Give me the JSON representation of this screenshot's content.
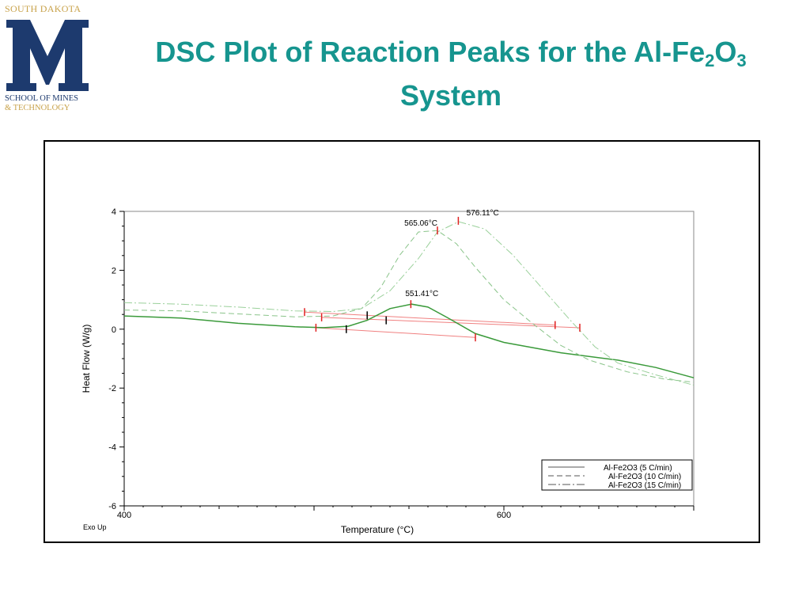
{
  "logo": {
    "top_text": "SOUTH DAKOTA",
    "letter": "M",
    "line1": "SCHOOL OF MINES",
    "line2": "& TECHNOLOGY",
    "colors": {
      "navy": "#1d3a6e",
      "gold": "#c8a24a"
    }
  },
  "title": {
    "part1": "DSC Plot of Reaction Peaks for the Al-Fe",
    "sub1": "2",
    "part2": "O",
    "sub2": "3",
    "line2": "System",
    "color": "#16958f"
  },
  "chart_data": {
    "type": "line",
    "xlabel": "Temperature (°C)",
    "ylabel": "Heat Flow (W/g)",
    "corner_note": "Exo Up",
    "xlim": [
      400,
      700
    ],
    "ylim": [
      -6,
      4
    ],
    "x_ticks": [
      400,
      600
    ],
    "y_ticks": [
      4,
      2,
      0,
      -2,
      -4,
      -6
    ],
    "legend_position": "bottom-right",
    "series": [
      {
        "name": "Al-Fe2O3 (5 C/min)",
        "style": "solid",
        "color": "#3a9a3a",
        "points": [
          [
            400,
            0.45
          ],
          [
            430,
            0.38
          ],
          [
            460,
            0.2
          ],
          [
            490,
            0.08
          ],
          [
            505,
            0.05
          ],
          [
            518,
            0.1
          ],
          [
            528,
            0.3
          ],
          [
            540,
            0.7
          ],
          [
            551.41,
            0.85
          ],
          [
            560,
            0.75
          ],
          [
            570,
            0.4
          ],
          [
            585,
            -0.15
          ],
          [
            600,
            -0.45
          ],
          [
            630,
            -0.8
          ],
          [
            660,
            -1.05
          ],
          [
            680,
            -1.3
          ],
          [
            700,
            -1.65
          ]
        ]
      },
      {
        "name": "Al-Fe2O3 (10 C/min)",
        "style": "dashed",
        "color": "#8ac48a",
        "points": [
          [
            400,
            0.65
          ],
          [
            430,
            0.62
          ],
          [
            460,
            0.52
          ],
          [
            490,
            0.42
          ],
          [
            510,
            0.45
          ],
          [
            525,
            0.7
          ],
          [
            535,
            1.4
          ],
          [
            545,
            2.5
          ],
          [
            555,
            3.3
          ],
          [
            565.06,
            3.35
          ],
          [
            575,
            2.9
          ],
          [
            585,
            2.1
          ],
          [
            600,
            1.0
          ],
          [
            615,
            0.2
          ],
          [
            630,
            -0.55
          ],
          [
            645,
            -1.05
          ],
          [
            665,
            -1.45
          ],
          [
            685,
            -1.7
          ],
          [
            700,
            -1.8
          ]
        ]
      },
      {
        "name": "Al-Fe2O3 (15 C/min)",
        "style": "dashdot",
        "color": "#9ad09a",
        "points": [
          [
            400,
            0.9
          ],
          [
            430,
            0.85
          ],
          [
            460,
            0.75
          ],
          [
            490,
            0.62
          ],
          [
            510,
            0.6
          ],
          [
            525,
            0.7
          ],
          [
            540,
            1.3
          ],
          [
            555,
            2.4
          ],
          [
            565,
            3.3
          ],
          [
            576.11,
            3.65
          ],
          [
            590,
            3.4
          ],
          [
            605,
            2.5
          ],
          [
            620,
            1.4
          ],
          [
            635,
            0.3
          ],
          [
            648,
            -0.6
          ],
          [
            660,
            -1.15
          ],
          [
            680,
            -1.55
          ],
          [
            700,
            -1.9
          ]
        ]
      }
    ],
    "baselines": [
      {
        "x1": 501,
        "y1": 0.05,
        "x2": 585,
        "y2": -0.28
      },
      {
        "x1": 495,
        "y1": 0.58,
        "x2": 627,
        "y2": 0.14
      },
      {
        "x1": 504,
        "y1": 0.4,
        "x2": 640,
        "y2": 0.05
      }
    ],
    "markers_red": [
      [
        495,
        0.58
      ],
      [
        504,
        0.4
      ],
      [
        501,
        0.05
      ],
      [
        551,
        0.85
      ],
      [
        565,
        3.35
      ],
      [
        576,
        3.68
      ],
      [
        627,
        0.14
      ],
      [
        640,
        0.05
      ],
      [
        585,
        -0.28
      ]
    ],
    "markers_black": [
      [
        517,
        0.0
      ],
      [
        528,
        0.47
      ],
      [
        538,
        0.3
      ]
    ],
    "peak_labels": [
      {
        "text": "565.06°C",
        "x": 565.06,
        "y": 3.35
      },
      {
        "text": "576.11°C",
        "x": 576.11,
        "y": 3.65
      },
      {
        "text": "551.41°C",
        "x": 551.41,
        "y": 0.85
      }
    ]
  }
}
